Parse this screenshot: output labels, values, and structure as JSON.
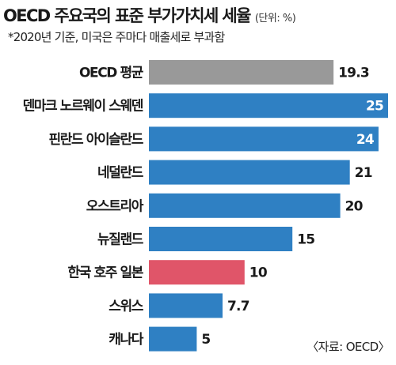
{
  "header": {
    "title": "OECD 주요국의 표준 부가가치세 세율",
    "unit": "(단위: %)",
    "note": "*2020년 기준, 미국은 주마다 매출세로 부과함"
  },
  "source": "〈자료: OECD〉",
  "colors": {
    "default": "#2f80c3",
    "oecd_average": "#999999",
    "highlight": "#e05569"
  },
  "chart_data": {
    "type": "bar",
    "orientation": "horizontal",
    "title": "OECD 주요국의 표준 부가가치세 세율",
    "unit": "(단위: %)",
    "categories": [
      "OECD 평균",
      "덴마크 노르웨이 스웨덴",
      "핀란드 아이슬란드",
      "네덜란드",
      "오스트리아",
      "뉴질랜드",
      "한국 호주 일본",
      "스위스",
      "캐나다"
    ],
    "values": [
      19.3,
      25,
      24,
      21,
      20,
      15,
      10,
      7.7,
      5
    ],
    "value_labels": [
      "19.3",
      "25",
      "24",
      "21",
      "20",
      "15",
      "10",
      "7.7",
      "5"
    ],
    "bar_styles": [
      "oecd_average",
      "default",
      "default",
      "default",
      "default",
      "default",
      "highlight",
      "default",
      "default"
    ],
    "labels_inside": [
      false,
      true,
      true,
      false,
      false,
      false,
      false,
      false,
      false
    ],
    "xlim": [
      0,
      25
    ],
    "grid": false,
    "legend": "none"
  }
}
